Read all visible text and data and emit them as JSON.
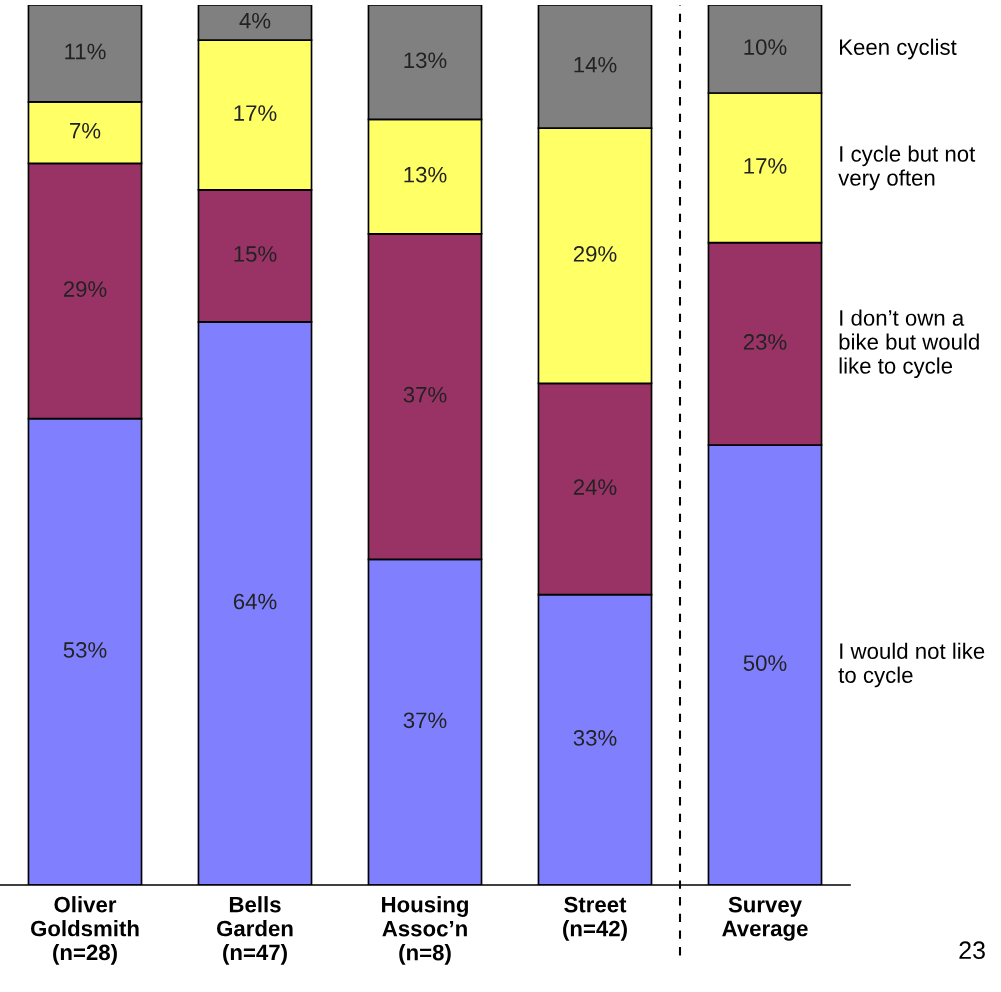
{
  "chart_data": {
    "type": "bar",
    "stacked": true,
    "categories": [
      "Oliver\nGoldsmith\n(n=28)",
      "Bells\nGarden\n(n=47)",
      "Housing\nAssoc’n\n(n=8)",
      "Street\n(n=42)",
      "Survey\nAverage"
    ],
    "series": [
      {
        "name": "I would not like to cycle",
        "color": "#8080ff",
        "values": [
          53,
          64,
          37,
          33,
          50
        ],
        "value_labels": [
          "53%",
          "64%",
          "37%",
          "33%",
          "50%"
        ]
      },
      {
        "name": "I don’t own a bike but would like to cycle",
        "color": "#993366",
        "values": [
          29,
          15,
          37,
          24,
          23
        ],
        "value_labels": [
          "29%",
          "15%",
          "37%",
          "24%",
          "23%"
        ]
      },
      {
        "name": "I cycle but not very often",
        "color": "#ffff66",
        "values": [
          7,
          17,
          13,
          29,
          17
        ],
        "value_labels": [
          "7%",
          "17%",
          "13%",
          "29%",
          "17%"
        ]
      },
      {
        "name": "Keen cyclist",
        "color": "#808080",
        "values": [
          11,
          4,
          13,
          14,
          10
        ],
        "value_labels": [
          "11%",
          "4%",
          "13%",
          "14%",
          "10%"
        ]
      }
    ],
    "annotations": [
      "23"
    ]
  }
}
